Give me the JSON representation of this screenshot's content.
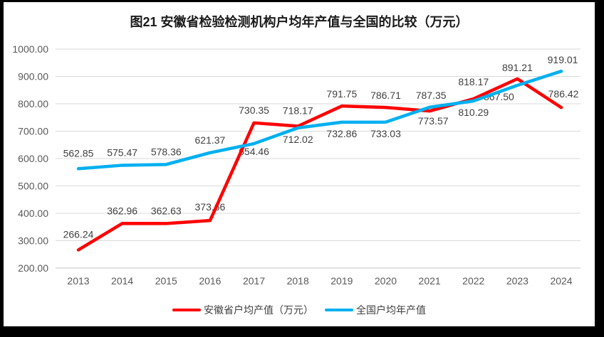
{
  "chart_data": {
    "type": "line",
    "title": "图21 安徽省检验检测机构户均年产值与全国的比较（万元）",
    "categories": [
      "2013",
      "2014",
      "2015",
      "2016",
      "2017",
      "2018",
      "2019",
      "2020",
      "2021",
      "2022",
      "2023",
      "2024"
    ],
    "series": [
      {
        "name": "安徽省户均产值（万元）",
        "color": "#FF0000",
        "values": [
          266.24,
          362.96,
          362.63,
          373.66,
          730.35,
          718.17,
          791.75,
          786.71,
          773.57,
          818.17,
          891.21,
          786.42
        ],
        "label_sides": [
          "above",
          "above",
          "above",
          "above",
          "above",
          "above",
          "above",
          "above",
          "below",
          "above",
          "above",
          "above"
        ],
        "label_dx": [
          0,
          0,
          0,
          0,
          0,
          0,
          0,
          0,
          5,
          0,
          0,
          3
        ],
        "label_dy": [
          -8,
          -4,
          -4,
          -5,
          -4,
          -8,
          -3,
          -3,
          -2,
          -10,
          -2,
          -5
        ]
      },
      {
        "name": "全国户均年产值",
        "color": "#00B0F0",
        "values": [
          562.85,
          575.47,
          578.36,
          621.37,
          654.46,
          712.02,
          732.86,
          733.03,
          787.35,
          810.29,
          867.5,
          919.01
        ],
        "label_sides": [
          "above",
          "above",
          "above",
          "above",
          "below",
          "below",
          "below",
          "below",
          "above",
          "below",
          "below",
          "above"
        ],
        "label_dx": [
          0,
          0,
          0,
          0,
          0,
          0,
          0,
          0,
          2,
          0,
          -26,
          2
        ],
        "label_dy": [
          -8,
          -4,
          -4,
          -4,
          -5,
          0,
          0,
          0,
          -3,
          0,
          0,
          -2
        ]
      }
    ],
    "ylim": [
      200,
      1000
    ],
    "ytick_step": 100,
    "ytick_labels": [
      "1000.00",
      "900.00",
      "800.00",
      "700.00",
      "600.00",
      "500.00",
      "400.00",
      "300.00",
      "200.00"
    ],
    "grid": "horizontal",
    "legend_position": "bottom",
    "colors": {
      "grid": "#D9D9D9",
      "bottom_axis": "#C6C6C6",
      "axis_text": "#595959",
      "data_label": "#404040",
      "title": "#1a1a1a",
      "frame": "#000000",
      "background": "#FFFFFF"
    }
  },
  "legend": {
    "items": [
      {
        "label": "安徽省户均产值（万元）",
        "color": "#FF0000"
      },
      {
        "label": "全国户均年产值",
        "color": "#00B0F0"
      }
    ]
  }
}
